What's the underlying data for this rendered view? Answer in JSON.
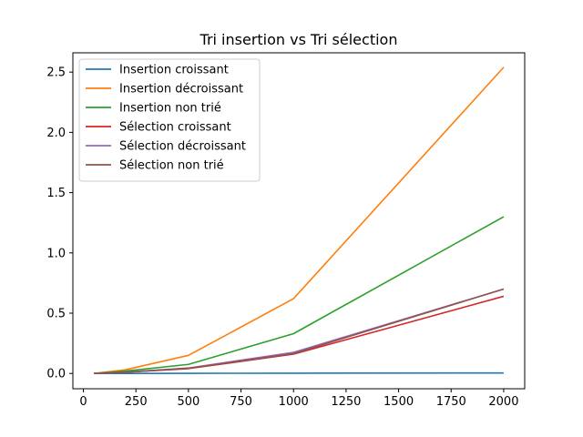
{
  "chart_data": {
    "type": "line",
    "title": "Tri insertion vs Tri sélection",
    "xlabel": "",
    "ylabel": "",
    "xlim": [
      -50,
      2100
    ],
    "ylim": [
      -0.127,
      2.66
    ],
    "xticks": [
      0,
      250,
      500,
      750,
      1000,
      1250,
      1500,
      1750,
      2000
    ],
    "yticks": [
      0.0,
      0.5,
      1.0,
      1.5,
      2.0,
      2.5
    ],
    "xtick_labels": [
      "0",
      "250",
      "500",
      "750",
      "1000",
      "1250",
      "1500",
      "1750",
      "2000"
    ],
    "ytick_labels": [
      "0.0",
      "0.5",
      "1.0",
      "1.5",
      "2.0",
      "2.5"
    ],
    "grid": false,
    "legend_position": "top-left",
    "x": [
      50,
      200,
      500,
      1000,
      2000
    ],
    "series": [
      {
        "name": "Insertion croissant",
        "color": "#1f77b4",
        "values": [
          0.0,
          0.0,
          0.001,
          0.002,
          0.004
        ]
      },
      {
        "name": "Insertion décroissant",
        "color": "#ff7f0e",
        "values": [
          0.0,
          0.03,
          0.15,
          0.62,
          2.54
        ]
      },
      {
        "name": "Insertion non trié",
        "color": "#2ca02c",
        "values": [
          0.0,
          0.02,
          0.075,
          0.33,
          1.3
        ]
      },
      {
        "name": "Sélection croissant",
        "color": "#d62728",
        "values": [
          0.0,
          0.01,
          0.04,
          0.16,
          0.64
        ]
      },
      {
        "name": "Sélection décroissant",
        "color": "#9467bd",
        "values": [
          0.0,
          0.01,
          0.045,
          0.175,
          0.7
        ]
      },
      {
        "name": "Sélection non trié",
        "color": "#8c564b",
        "values": [
          0.0,
          0.01,
          0.043,
          0.165,
          0.7
        ]
      }
    ]
  }
}
